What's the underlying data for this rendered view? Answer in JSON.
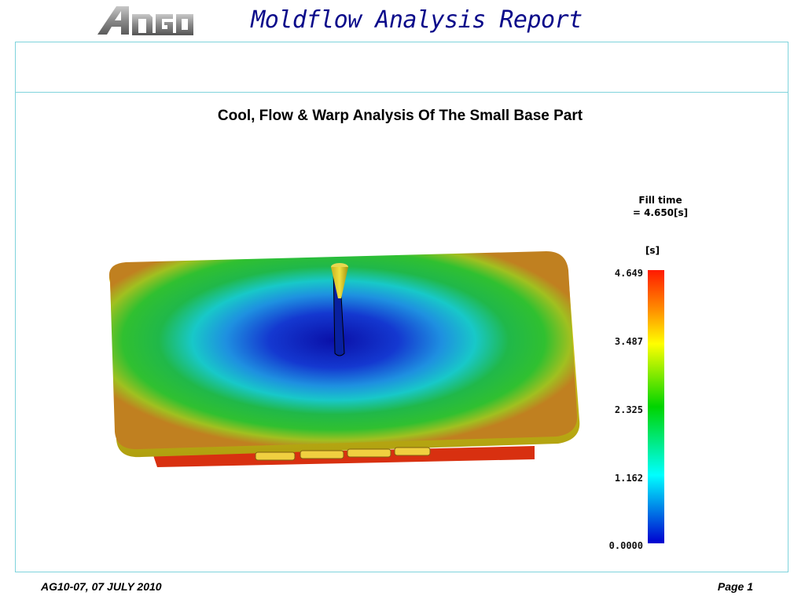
{
  "header": {
    "logo_text": "ANGO",
    "title": "Moldflow Analysis Report"
  },
  "section": {
    "title": "Cool, Flow & Warp Analysis Of The Small Base Part"
  },
  "legend": {
    "result_name": "Fill time",
    "result_value": "= 4.650[s]",
    "unit": "[s]",
    "ticks": [
      "4.649",
      "3.487",
      "2.325",
      "1.162",
      "0.0000"
    ],
    "colors": [
      "#ff1a00",
      "#ffff00",
      "#00d400",
      "#00ffff",
      "#0000d0"
    ]
  },
  "footer": {
    "ref": "AG10-07, 07 JULY 2010",
    "page": "Page 1"
  }
}
